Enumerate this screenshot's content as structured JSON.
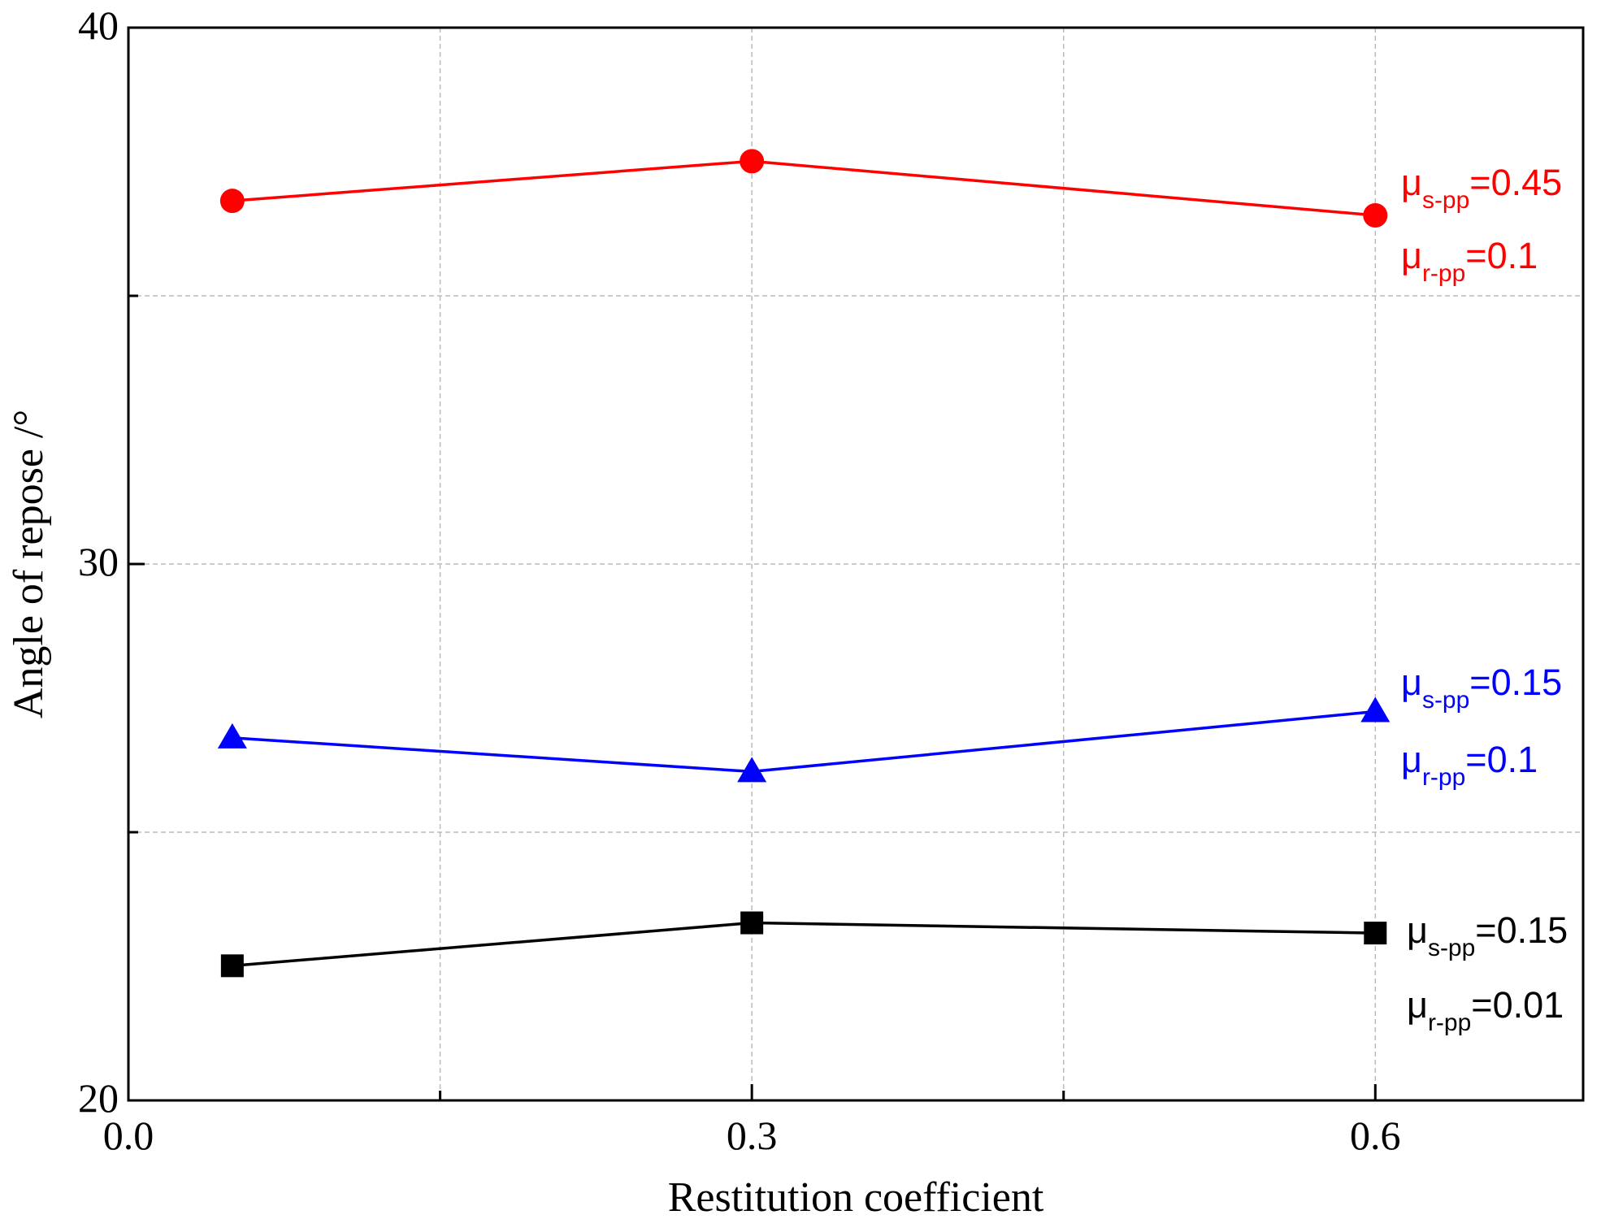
{
  "chart_data": {
    "type": "line",
    "xlabel": "Restitution coefficient",
    "ylabel": "Angle of repose /°",
    "x": [
      0.05,
      0.3,
      0.6
    ],
    "series": [
      {
        "color": "#ff0000",
        "marker": "circle",
        "values": [
          36.77,
          37.51,
          36.5
        ],
        "annotation": [
          {
            "symbol": "μ",
            "sub": "s-pp",
            "text": "=0.45"
          },
          {
            "symbol": "μ",
            "sub": "r-pp",
            "text": "=0.1"
          }
        ]
      },
      {
        "color": "#0000ff",
        "marker": "triangle",
        "values": [
          26.76,
          26.13,
          27.25
        ],
        "annotation": [
          {
            "symbol": "μ",
            "sub": "s-pp",
            "text": "=0.15"
          },
          {
            "symbol": "μ",
            "sub": "r-pp",
            "text": "=0.1"
          }
        ]
      },
      {
        "color": "#000000",
        "marker": "square",
        "values": [
          22.51,
          23.31,
          23.12
        ],
        "annotation": [
          {
            "symbol": "μ",
            "sub": "s-pp",
            "text": "=0.15"
          },
          {
            "symbol": "μ",
            "sub": "r-pp",
            "text": "=0.01"
          }
        ]
      }
    ],
    "xlim": [
      0,
      0.7
    ],
    "ylim": [
      20,
      40
    ],
    "xticks": [
      {
        "value": 0,
        "label": "0.0"
      },
      0.3,
      0.6
    ],
    "xminorticks": [
      0.15,
      0.45
    ],
    "yticks": [
      20,
      30,
      40
    ],
    "yminorticks": [
      25,
      35
    ],
    "grid": true
  }
}
